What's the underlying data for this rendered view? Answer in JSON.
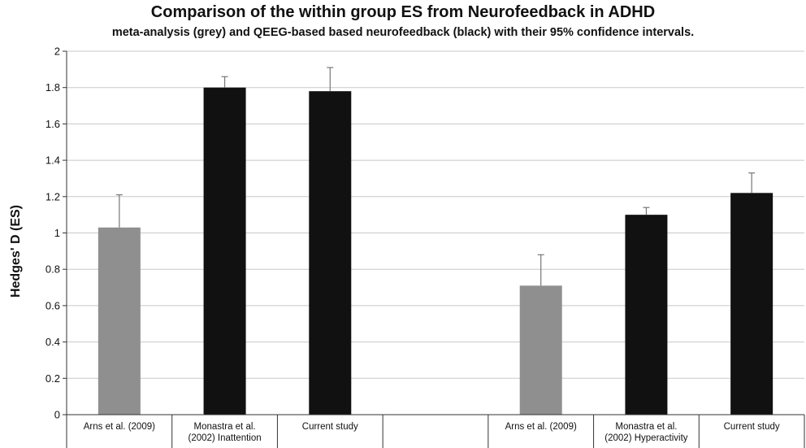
{
  "chart_data": {
    "type": "bar",
    "title": "Comparison of the within group ES from Neurofeedback in ADHD",
    "subtitle": "meta-analysis (grey) and QEEG-based based neurofeedback (black) with their 95% confidence intervals.",
    "ylabel": "Hedges' D (ES)",
    "ylim": [
      0,
      2
    ],
    "yticks": [
      "0",
      "0.2",
      "0.4",
      "0.6",
      "0.8",
      "1",
      "1.2",
      "1.4",
      "1.6",
      "1.8",
      "2"
    ],
    "grid": true,
    "categories": [
      [
        "Arns et al. (2009)"
      ],
      [
        "Monastra et al.",
        "(2002) Inattention"
      ],
      [
        "Current study"
      ],
      [
        ""
      ],
      [
        "Arns et al. (2009)"
      ],
      [
        "Monastra et al.",
        "(2002) Hyperactivity"
      ],
      [
        "Current study"
      ]
    ],
    "values": [
      1.03,
      1.8,
      1.78,
      null,
      0.71,
      1.1,
      1.22
    ],
    "error_upper": [
      1.21,
      1.86,
      1.91,
      null,
      0.88,
      1.14,
      1.33
    ],
    "bar_colors": [
      "#8f8f8f",
      "#111111",
      "#111111",
      null,
      "#8f8f8f",
      "#111111",
      "#111111"
    ]
  }
}
